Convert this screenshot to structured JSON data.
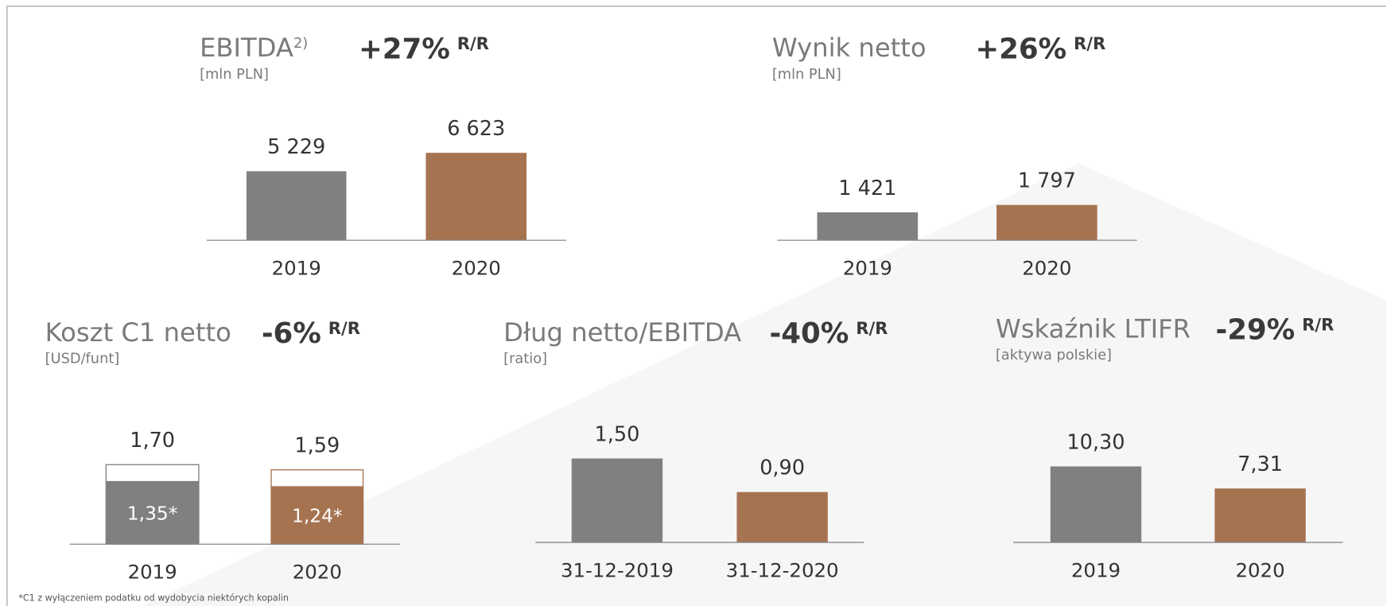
{
  "chart_data": [
    {
      "type": "bar",
      "title": "EBITDA",
      "title_note": "2)",
      "change": "+27%",
      "change_unit": "R/R",
      "subtitle": "[mln PLN]",
      "categories": [
        "2019",
        "2020"
      ],
      "values": [
        5229,
        6623
      ],
      "value_labels": [
        "5 229",
        "6 623"
      ],
      "colors": [
        "#808080",
        "#a67351"
      ]
    },
    {
      "type": "bar",
      "title": "Wynik netto",
      "change": "+26%",
      "change_unit": "R/R",
      "subtitle": "[mln PLN]",
      "categories": [
        "2019",
        "2020"
      ],
      "values": [
        1421,
        1797
      ],
      "value_labels": [
        "1 421",
        "1 797"
      ],
      "colors": [
        "#808080",
        "#a67351"
      ]
    },
    {
      "type": "bar",
      "title": "Koszt C1 netto",
      "change": "-6%",
      "change_unit": "R/R",
      "subtitle": "[USD/funt]",
      "categories": [
        "2019",
        "2020"
      ],
      "values": [
        1.7,
        1.59
      ],
      "value_labels": [
        "1,70",
        "1,59"
      ],
      "inner_values": [
        1.35,
        1.24
      ],
      "inner_value_labels": [
        "1,35*",
        "1,24*"
      ],
      "colors": [
        "#808080",
        "#a67351"
      ]
    },
    {
      "type": "bar",
      "title": "Dług netto/EBITDA",
      "change": "-40%",
      "change_unit": "R/R",
      "subtitle": "[ratio]",
      "categories": [
        "31-12-2019",
        "31-12-2020"
      ],
      "values": [
        1.5,
        0.9
      ],
      "value_labels": [
        "1,50",
        "0,90"
      ],
      "colors": [
        "#808080",
        "#a67351"
      ]
    },
    {
      "type": "bar",
      "title": "Wskaźnik LTIFR",
      "change": "-29%",
      "change_unit": "R/R",
      "subtitle": "[aktywa polskie]",
      "categories": [
        "2019",
        "2020"
      ],
      "values": [
        10.3,
        7.31
      ],
      "value_labels": [
        "10,30",
        "7,31"
      ],
      "colors": [
        "#808080",
        "#a67351"
      ]
    }
  ],
  "footnote": "*C1 z wyłączeniem podatku od wydobycia niektórych kopalin"
}
